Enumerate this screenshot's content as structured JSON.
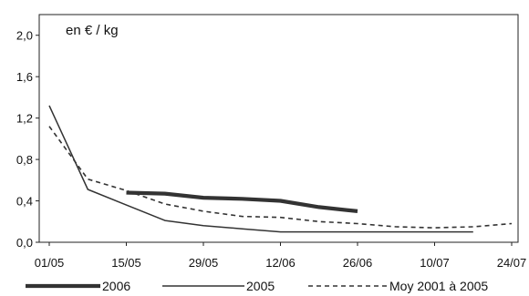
{
  "chart_data": {
    "type": "line",
    "title": "",
    "unit_label": "en € / kg",
    "xlabel": "",
    "ylabel": "",
    "x_tick_labels": [
      "01/05",
      "15/05",
      "29/05",
      "12/06",
      "26/06",
      "10/07",
      "24/07"
    ],
    "y_tick_labels": [
      "0,0",
      "0,4",
      "0,8",
      "1,2",
      "1,6",
      "2,0"
    ],
    "ylim": [
      0,
      2.2
    ],
    "grid": false,
    "legend_position": "bottom",
    "series": [
      {
        "name": "2006",
        "style": "thick",
        "color": "#333333",
        "x": [
          "15/05",
          "22/05",
          "29/05",
          "05/06",
          "12/06",
          "19/06",
          "26/06"
        ],
        "values": [
          0.48,
          0.47,
          0.43,
          0.42,
          0.4,
          0.34,
          0.3
        ]
      },
      {
        "name": "2005",
        "style": "thin",
        "color": "#333333",
        "x": [
          "01/05",
          "08/05",
          "15/05",
          "22/05",
          "29/05",
          "05/06",
          "12/06",
          "19/06",
          "26/06",
          "03/07",
          "10/07",
          "17/07"
        ],
        "values": [
          1.32,
          0.51,
          0.36,
          0.21,
          0.16,
          0.13,
          0.1,
          0.1,
          0.1,
          0.1,
          0.1,
          0.1
        ]
      },
      {
        "name": "Moy 2001 à 2005",
        "style": "dashed",
        "color": "#333333",
        "x": [
          "01/05",
          "08/05",
          "15/05",
          "22/05",
          "29/05",
          "05/06",
          "12/06",
          "19/06",
          "26/06",
          "03/07",
          "10/07",
          "17/07",
          "24/07"
        ],
        "values": [
          1.12,
          0.61,
          0.5,
          0.37,
          0.3,
          0.25,
          0.24,
          0.2,
          0.18,
          0.15,
          0.14,
          0.15,
          0.18
        ]
      }
    ]
  }
}
